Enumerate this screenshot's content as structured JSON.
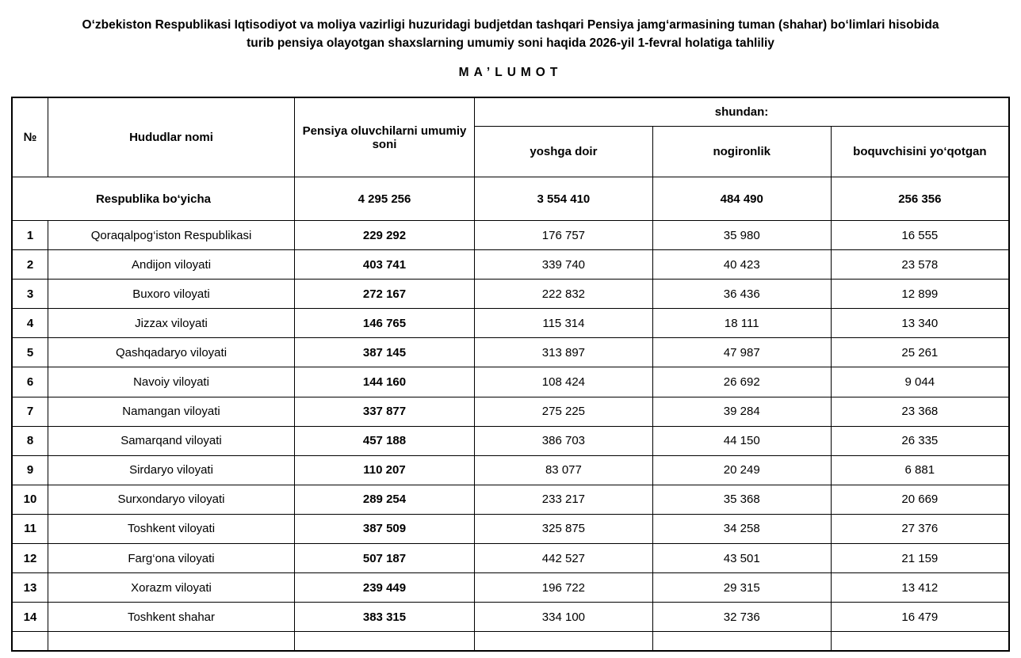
{
  "colors": {
    "text": "#000000",
    "background": "#ffffff",
    "border": "#000000"
  },
  "header": {
    "title_line1": "O‘zbekiston Respublikasi Iqtisodiyot va moliya vazirligi huzuridagi budjetdan tashqari Pensiya jamg‘armasining tuman (shahar) bo‘limlari hisobida",
    "title_line2": "turib pensiya olayotgan shaxslarning umumiy soni haqida 2026-yil 1-fevral holatiga tahliliy",
    "subtitle": "MA’LUMOT"
  },
  "table": {
    "columns": {
      "num": "№",
      "region": "Hududlar nomi",
      "total": "Pensiya oluvchilarni umumiy soni",
      "group": "shundan:",
      "age": "yoshga doir",
      "disability": "nogironlik",
      "breadwinner": "boquvchisini yo‘qotgan"
    },
    "summary_row": {
      "label": "Respublika bo‘yicha",
      "total": "4 295 256",
      "age": "3 554 410",
      "disability": "484 490",
      "breadwinner": "256 356"
    },
    "rows": [
      {
        "num": "1",
        "name": "Qoraqalpog‘iston Respublikasi",
        "total": "229 292",
        "age": "176 757",
        "disability": "35 980",
        "breadwinner": "16 555"
      },
      {
        "num": "2",
        "name": "Andijon viloyati",
        "total": "403 741",
        "age": "339 740",
        "disability": "40 423",
        "breadwinner": "23 578"
      },
      {
        "num": "3",
        "name": "Buxoro viloyati",
        "total": "272 167",
        "age": "222 832",
        "disability": "36 436",
        "breadwinner": "12 899"
      },
      {
        "num": "4",
        "name": "Jizzax viloyati",
        "total": "146 765",
        "age": "115 314",
        "disability": "18 111",
        "breadwinner": "13 340"
      },
      {
        "num": "5",
        "name": "Qashqadaryo viloyati",
        "total": "387 145",
        "age": "313 897",
        "disability": "47 987",
        "breadwinner": "25 261"
      },
      {
        "num": "6",
        "name": "Navoiy viloyati",
        "total": "144 160",
        "age": "108 424",
        "disability": "26 692",
        "breadwinner": "9 044"
      },
      {
        "num": "7",
        "name": "Namangan viloyati",
        "total": "337 877",
        "age": "275 225",
        "disability": "39 284",
        "breadwinner": "23 368"
      },
      {
        "num": "8",
        "name": "Samarqand viloyati",
        "total": "457 188",
        "age": "386 703",
        "disability": "44 150",
        "breadwinner": "26 335"
      },
      {
        "num": "9",
        "name": "Sirdaryo viloyati",
        "total": "110 207",
        "age": "83 077",
        "disability": "20 249",
        "breadwinner": "6 881"
      },
      {
        "num": "10",
        "name": "Surxondaryo viloyati",
        "total": "289 254",
        "age": "233 217",
        "disability": "35 368",
        "breadwinner": "20 669"
      },
      {
        "num": "11",
        "name": "Toshkent viloyati",
        "total": "387 509",
        "age": "325 875",
        "disability": "34 258",
        "breadwinner": "27 376"
      },
      {
        "num": "12",
        "name": "Farg‘ona viloyati",
        "total": "507 187",
        "age": "442 527",
        "disability": "43 501",
        "breadwinner": "21 159"
      },
      {
        "num": "13",
        "name": "Xorazm viloyati",
        "total": "239 449",
        "age": "196 722",
        "disability": "29 315",
        "breadwinner": "13 412"
      },
      {
        "num": "14",
        "name": "Toshkent shahar",
        "total": "383 315",
        "age": "334 100",
        "disability": "32 736",
        "breadwinner": "16 479"
      }
    ]
  }
}
